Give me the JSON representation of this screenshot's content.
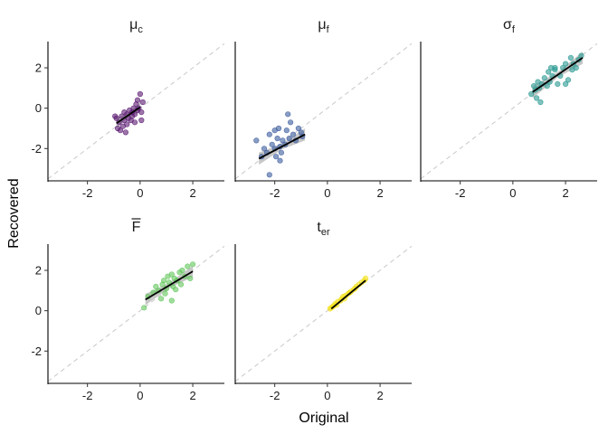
{
  "chart_data": {
    "type": "scatter",
    "xlabel": "Original",
    "ylabel": "Recovered",
    "xlim": [
      -3.5,
      3.2
    ],
    "ylim": [
      -3.6,
      3.3
    ],
    "xticks": [
      -2,
      0,
      2
    ],
    "yticks": [
      -2,
      0,
      2
    ],
    "identity_line": true,
    "regression_line": true,
    "confidence_band": true,
    "grid": false,
    "facets": [
      {
        "title": "μ",
        "subscript": "c",
        "overline": false,
        "color": "#5b1a72",
        "fit": {
          "x": [
            -0.9,
            0.0
          ],
          "y": [
            -0.75,
            0.05
          ]
        },
        "band_halfwidth": 0.25,
        "points": [
          [
            -0.9,
            -0.5
          ],
          [
            -0.85,
            -1.0
          ],
          [
            -0.8,
            -0.7
          ],
          [
            -0.75,
            -1.1
          ],
          [
            -0.7,
            -0.4
          ],
          [
            -0.65,
            -0.9
          ],
          [
            -0.6,
            -0.6
          ],
          [
            -0.55,
            -1.2
          ],
          [
            -0.5,
            -0.3
          ],
          [
            -0.5,
            -0.8
          ],
          [
            -0.45,
            -0.5
          ],
          [
            -0.4,
            -0.1
          ],
          [
            -0.35,
            -0.6
          ],
          [
            -0.3,
            -0.2
          ],
          [
            -0.3,
            -0.4
          ],
          [
            -0.25,
            0.0
          ],
          [
            -0.2,
            -0.7
          ],
          [
            -0.2,
            -0.3
          ],
          [
            -0.15,
            0.2
          ],
          [
            -0.1,
            -0.1
          ],
          [
            -0.1,
            0.4
          ],
          [
            -0.05,
            0.0
          ],
          [
            0.0,
            0.7
          ],
          [
            0.05,
            -0.6
          ],
          [
            0.05,
            -0.2
          ],
          [
            0.1,
            0.3
          ],
          [
            -0.6,
            -0.2
          ],
          [
            -0.95,
            -0.4
          ]
        ]
      },
      {
        "title": "μ",
        "subscript": "f",
        "overline": false,
        "color": "#3b5b9d",
        "fit": {
          "x": [
            -2.6,
            -0.85
          ],
          "y": [
            -2.5,
            -1.3
          ]
        },
        "band_halfwidth": 0.3,
        "points": [
          [
            -2.7,
            -1.6
          ],
          [
            -2.5,
            -2.4
          ],
          [
            -2.4,
            -2.0
          ],
          [
            -2.3,
            -2.2
          ],
          [
            -2.2,
            -3.3
          ],
          [
            -2.2,
            -1.3
          ],
          [
            -2.1,
            -1.8
          ],
          [
            -2.0,
            -2.0
          ],
          [
            -1.95,
            -2.4
          ],
          [
            -1.9,
            -1.5
          ],
          [
            -1.85,
            -1.0
          ],
          [
            -1.8,
            -1.9
          ],
          [
            -1.75,
            -2.2
          ],
          [
            -1.7,
            -1.6
          ],
          [
            -1.6,
            -1.8
          ],
          [
            -1.55,
            -1.1
          ],
          [
            -1.5,
            -0.3
          ],
          [
            -1.45,
            -1.5
          ],
          [
            -1.4,
            -0.7
          ],
          [
            -1.3,
            -1.3
          ],
          [
            -1.2,
            -1.6
          ],
          [
            -1.1,
            -1.0
          ],
          [
            -1.0,
            -1.2
          ],
          [
            -0.95,
            -1.4
          ],
          [
            -2.0,
            -1.1
          ],
          [
            -1.8,
            -2.6
          ]
        ]
      },
      {
        "title": "σ",
        "subscript": "f",
        "overline": false,
        "color": "#2a9a92",
        "fit": {
          "x": [
            0.75,
            2.65
          ],
          "y": [
            0.8,
            2.5
          ]
        },
        "band_halfwidth": 0.3,
        "points": [
          [
            0.7,
            0.7
          ],
          [
            0.8,
            1.1
          ],
          [
            0.85,
            0.9
          ],
          [
            0.9,
            0.5
          ],
          [
            0.95,
            1.3
          ],
          [
            1.0,
            1.0
          ],
          [
            1.05,
            0.3
          ],
          [
            1.1,
            1.2
          ],
          [
            1.2,
            1.5
          ],
          [
            1.3,
            1.1
          ],
          [
            1.35,
            1.8
          ],
          [
            1.4,
            1.3
          ],
          [
            1.45,
            2.0
          ],
          [
            1.5,
            1.6
          ],
          [
            1.6,
            1.9
          ],
          [
            1.7,
            1.2
          ],
          [
            1.8,
            1.6
          ],
          [
            1.9,
            2.0
          ],
          [
            2.0,
            1.2
          ],
          [
            2.1,
            1.4
          ],
          [
            2.2,
            2.5
          ],
          [
            2.25,
            1.9
          ],
          [
            2.3,
            2.2
          ],
          [
            2.4,
            2.0
          ],
          [
            2.5,
            2.4
          ],
          [
            2.6,
            2.6
          ],
          [
            1.6,
            2.0
          ],
          [
            2.0,
            2.2
          ]
        ]
      },
      {
        "title": "F",
        "subscript": "",
        "overline": true,
        "color": "#63c75c",
        "fit": {
          "x": [
            0.2,
            2.0
          ],
          "y": [
            0.55,
            1.95
          ]
        },
        "band_halfwidth": 0.28,
        "points": [
          [
            0.15,
            0.15
          ],
          [
            0.3,
            0.7
          ],
          [
            0.5,
            0.9
          ],
          [
            0.6,
            1.2
          ],
          [
            0.7,
            1.0
          ],
          [
            0.8,
            0.6
          ],
          [
            0.85,
            1.3
          ],
          [
            0.9,
            1.5
          ],
          [
            1.0,
            1.1
          ],
          [
            1.05,
            1.7
          ],
          [
            1.1,
            1.4
          ],
          [
            1.2,
            1.8
          ],
          [
            1.25,
            1.2
          ],
          [
            1.3,
            1.6
          ],
          [
            1.4,
            1.5
          ],
          [
            1.5,
            1.9
          ],
          [
            1.55,
            1.3
          ],
          [
            1.6,
            2.0
          ],
          [
            1.7,
            1.7
          ],
          [
            1.8,
            2.2
          ],
          [
            1.9,
            1.6
          ],
          [
            2.0,
            2.3
          ],
          [
            1.2,
            0.5
          ],
          [
            0.95,
            0.85
          ],
          [
            1.35,
            1.05
          ]
        ]
      },
      {
        "title": "t",
        "subscript": "er",
        "overline": false,
        "color": "#f2e11a",
        "fit": {
          "x": [
            0.15,
            1.45
          ],
          "y": [
            0.1,
            1.5
          ]
        },
        "band_halfwidth": 0.06,
        "points": [
          [
            0.1,
            0.1
          ],
          [
            0.15,
            0.15
          ],
          [
            0.2,
            0.2
          ],
          [
            0.25,
            0.25
          ],
          [
            0.3,
            0.35
          ],
          [
            0.4,
            0.45
          ],
          [
            0.5,
            0.5
          ],
          [
            0.55,
            0.6
          ],
          [
            0.6,
            0.7
          ],
          [
            0.7,
            0.75
          ],
          [
            0.8,
            0.85
          ],
          [
            0.85,
            0.9
          ],
          [
            0.9,
            0.95
          ],
          [
            1.0,
            1.05
          ],
          [
            1.05,
            1.1
          ],
          [
            1.1,
            1.2
          ],
          [
            1.2,
            1.3
          ],
          [
            1.3,
            1.4
          ],
          [
            1.4,
            1.5
          ],
          [
            1.45,
            1.6
          ],
          [
            0.35,
            0.3
          ],
          [
            0.65,
            0.6
          ]
        ]
      }
    ]
  }
}
